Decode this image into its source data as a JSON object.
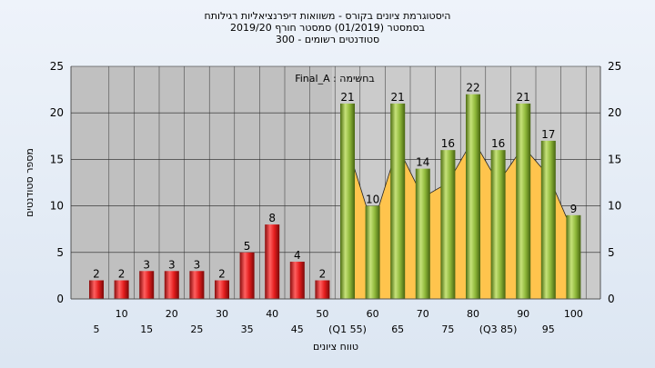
{
  "titles": {
    "line1": "היסטוגרמת ציונים בקורס - משוואות דיפרנציאליות רגילותח",
    "line2": "בסמסטר (01/2019) סמסטר חורף 2019/20",
    "line3": "סטודנטים רשומים - 300"
  },
  "chart_data": {
    "type": "bar",
    "xlabel": "טווח ציונים",
    "ylabel": "מספר סטודנטים",
    "filter_label": "Final_A : בחשימה",
    "ylim": [
      0,
      25
    ],
    "y_ticks": [
      0,
      5,
      10,
      15,
      20,
      25
    ],
    "grid": true,
    "categories": [
      "5",
      "10",
      "15",
      "20",
      "25",
      "30",
      "35",
      "40",
      "45",
      "50",
      "(Q1 55)",
      "60",
      "65",
      "70",
      "75",
      "80",
      "(Q3 85)",
      "90",
      "95",
      "100"
    ],
    "values": [
      2,
      2,
      3,
      3,
      3,
      2,
      5,
      8,
      4,
      2,
      21,
      10,
      21,
      14,
      16,
      22,
      16,
      21,
      17,
      9
    ],
    "colors": {
      "below_pass": "#e02020",
      "pass": "#8fb83a",
      "area": "#ffc44d",
      "plot_bg": "#c0c0c0"
    },
    "pass_threshold": 55
  }
}
